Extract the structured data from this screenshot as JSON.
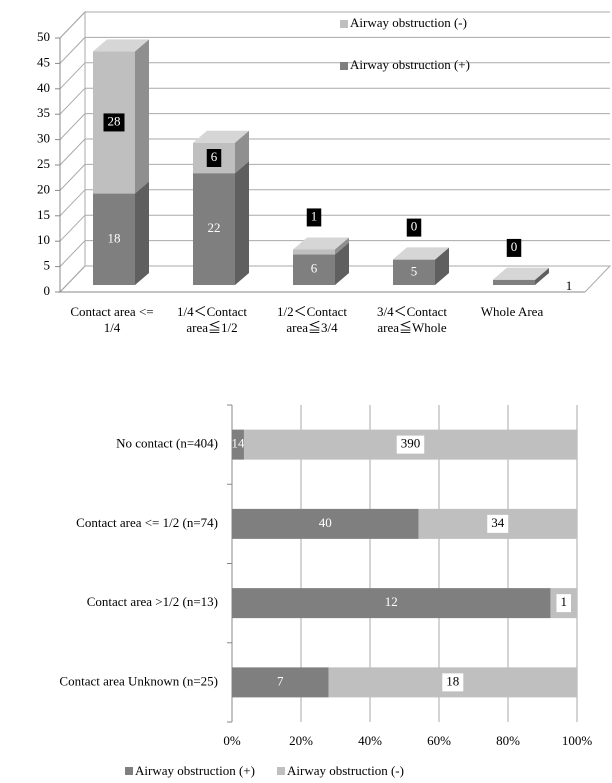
{
  "chart_data": [
    {
      "type": "bar3d_stacked",
      "categories": [
        "Contact area <= 1/4",
        "1/4＜Contact area≦1/2",
        "1/2＜Contact area≦3/4",
        "3/4＜Contact area≦Whole",
        "Whole Area"
      ],
      "series": [
        {
          "name": "Airway obstruction (+)",
          "color": "#7f7f7f",
          "values": [
            18,
            22,
            6,
            5,
            1
          ]
        },
        {
          "name": "Airway obstruction (-)",
          "color": "#bfbfbf",
          "values": [
            28,
            6,
            1,
            0,
            0
          ]
        }
      ],
      "ylim": [
        0,
        50
      ],
      "yticks": [
        0,
        5,
        10,
        15,
        20,
        25,
        30,
        35,
        40,
        45,
        50
      ],
      "grid": true,
      "legend": "top-right"
    },
    {
      "type": "hbar_percent_stacked",
      "categories": [
        "No contact (n=404)",
        "Contact area <= 1/2 (n=74)",
        "Contact area >1/2 (n=13)",
        "Contact area Unknown (n=25)"
      ],
      "series": [
        {
          "name": "Airway obstruction (+)",
          "color": "#7f7f7f",
          "values": [
            14,
            40,
            12,
            7
          ]
        },
        {
          "name": "Airway obstruction (-)",
          "color": "#bfbfbf",
          "values": [
            390,
            34,
            1,
            18
          ]
        }
      ],
      "xlim": [
        0,
        100
      ],
      "xticks": [
        {
          "value": 0,
          "label": "0%"
        },
        {
          "value": 20,
          "label": "20%"
        },
        {
          "value": 40,
          "label": "40%"
        },
        {
          "value": 60,
          "label": "60%"
        },
        {
          "value": 80,
          "label": "80%"
        },
        {
          "value": 100,
          "label": "100%"
        }
      ],
      "grid": true,
      "legend": "bottom"
    }
  ]
}
